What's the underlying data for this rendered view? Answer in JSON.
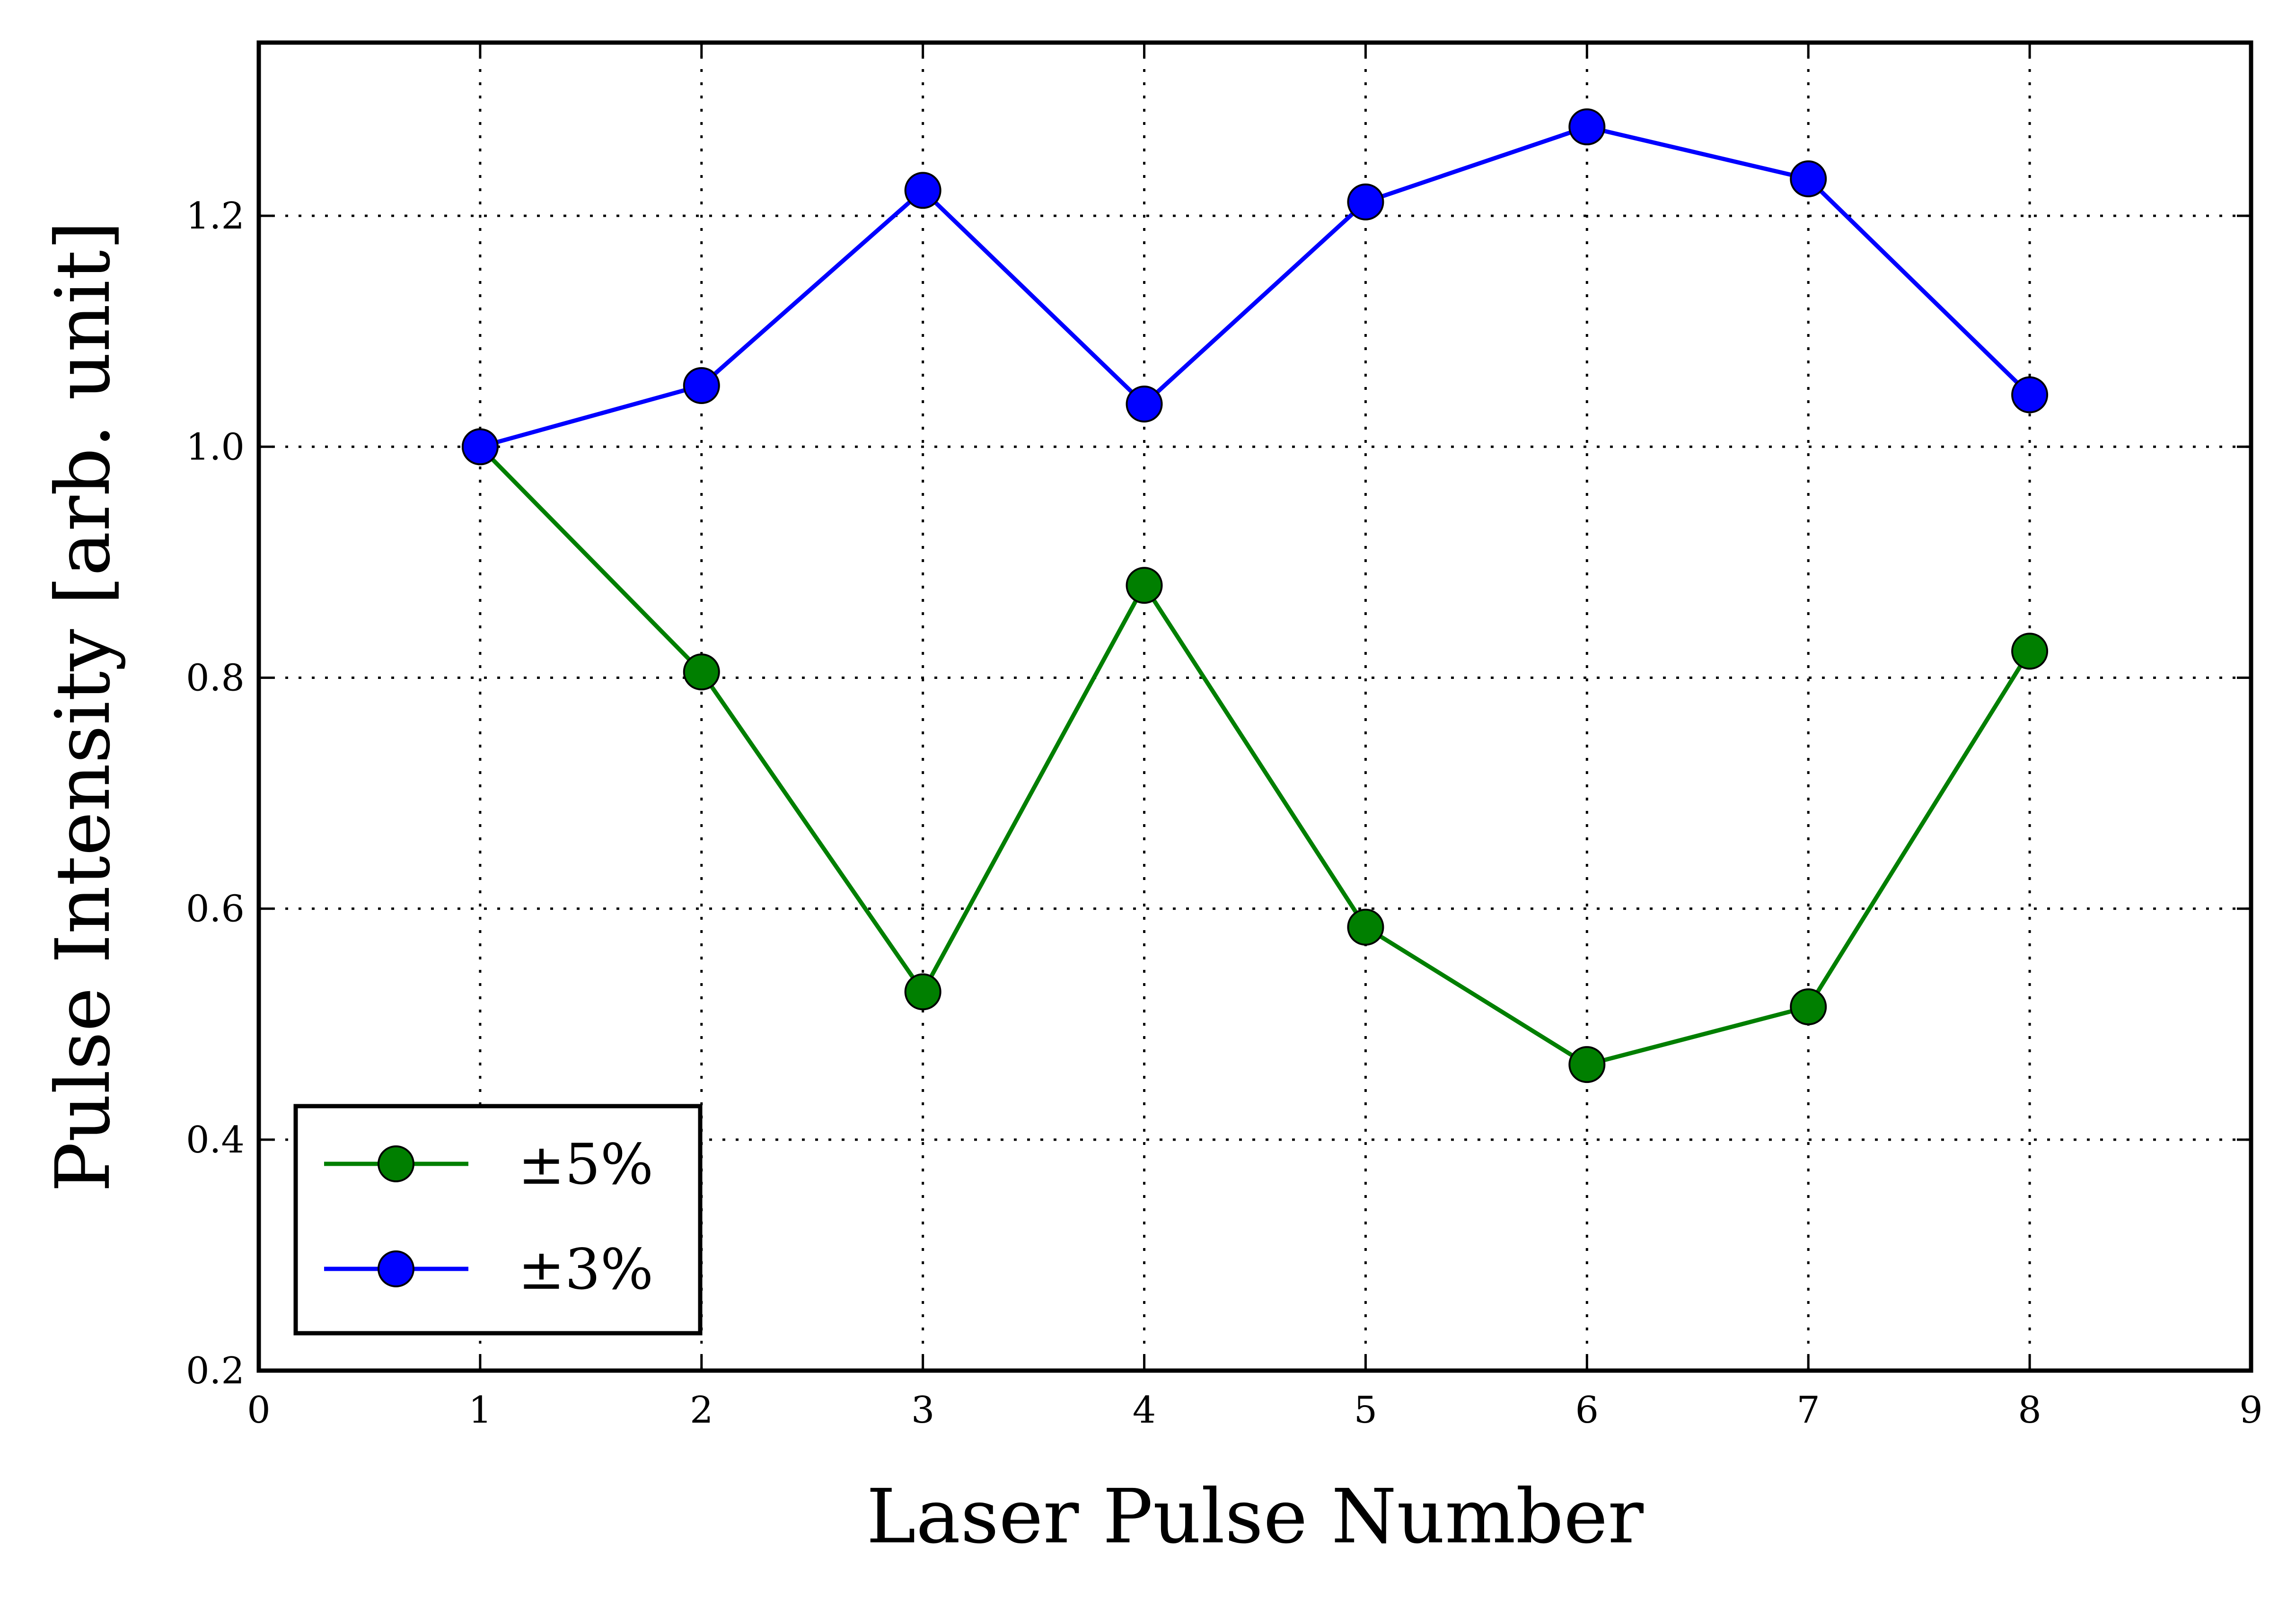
{
  "chart_data": {
    "type": "line",
    "title": "",
    "xlabel": "Laser Pulse Number",
    "ylabel": "Pulse Intensity [arb. unit]",
    "xlim": [
      0,
      9
    ],
    "ylim": [
      0.2,
      1.35
    ],
    "xticks": [
      0,
      1,
      2,
      3,
      4,
      5,
      6,
      7,
      8,
      9
    ],
    "xtick_labels": [
      "0",
      "1",
      "2",
      "3",
      "4",
      "5",
      "6",
      "7",
      "8",
      "9"
    ],
    "yticks": [
      0.2,
      0.4,
      0.6,
      0.8,
      1.0,
      1.2
    ],
    "ytick_labels": [
      "0.2",
      "0.4",
      "0.6",
      "0.8",
      "1.0",
      "1.2"
    ],
    "grid": true,
    "legend_position": "lower-left",
    "x": [
      1,
      2,
      3,
      4,
      5,
      6,
      7,
      8
    ],
    "series": [
      {
        "name": "±5%",
        "color": "#007f00",
        "marker": "circle",
        "values": [
          1.0,
          0.805,
          0.528,
          0.88,
          0.584,
          0.465,
          0.515,
          0.823
        ]
      },
      {
        "name": "±3%",
        "color": "#0000ff",
        "marker": "circle",
        "values": [
          1.0,
          1.053,
          1.222,
          1.037,
          1.212,
          1.277,
          1.232,
          1.045
        ]
      }
    ]
  }
}
